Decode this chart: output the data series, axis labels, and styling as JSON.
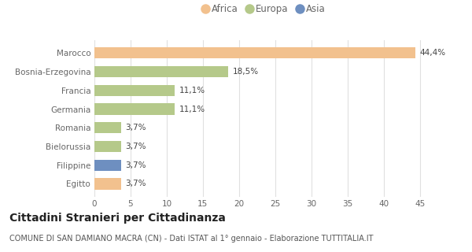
{
  "categories": [
    "Marocco",
    "Bosnia-Erzegovina",
    "Francia",
    "Germania",
    "Romania",
    "Bielorussia",
    "Filippine",
    "Egitto"
  ],
  "values": [
    44.4,
    18.5,
    11.1,
    11.1,
    3.7,
    3.7,
    3.7,
    3.7
  ],
  "labels": [
    "44,4%",
    "18,5%",
    "11,1%",
    "11,1%",
    "3,7%",
    "3,7%",
    "3,7%",
    "3,7%"
  ],
  "colors": [
    "#f2c18e",
    "#b5c98a",
    "#b5c98a",
    "#b5c98a",
    "#b5c98a",
    "#b5c98a",
    "#6e8fc0",
    "#f2c18e"
  ],
  "legend": [
    {
      "label": "Africa",
      "color": "#f2c18e"
    },
    {
      "label": "Europa",
      "color": "#b5c98a"
    },
    {
      "label": "Asia",
      "color": "#6e8fc0"
    }
  ],
  "xlim": [
    0,
    47
  ],
  "xticks": [
    0,
    5,
    10,
    15,
    20,
    25,
    30,
    35,
    40,
    45
  ],
  "title_bold": "Cittadini Stranieri per Cittadinanza",
  "subtitle": "COMUNE DI SAN DAMIANO MACRA (CN) - Dati ISTAT al 1° gennaio - Elaborazione TUTTITALIA.IT",
  "background_color": "#ffffff",
  "grid_color": "#e0e0e0",
  "bar_height": 0.6,
  "label_fontsize": 7.5,
  "tick_fontsize": 7.5,
  "title_fontsize": 10,
  "subtitle_fontsize": 7,
  "label_color": "#444444",
  "tick_color": "#666666"
}
